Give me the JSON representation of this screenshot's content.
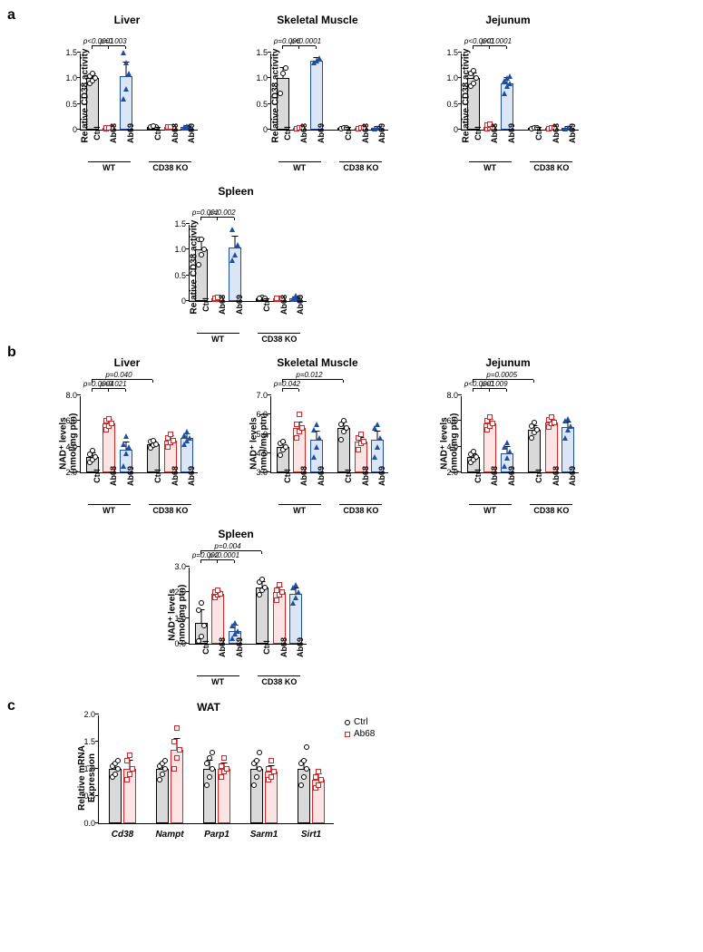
{
  "colors": {
    "ctrl_fill": "#d9d9d9",
    "ctrl_border": "#000000",
    "ab68_fill": "#fde4e4",
    "ab68_border": "#d62728",
    "ab69_fill": "#dae6f5",
    "ab69_border": "#1f4ea1"
  },
  "panel_a": {
    "label": "a",
    "ylabel": "Relative CD38 activity",
    "categories": [
      "Ctrl",
      "Ab68",
      "Ab69",
      "Ctrl",
      "Ab68",
      "Ab69"
    ],
    "groups": [
      "WT",
      "CD38 KO"
    ],
    "charts": [
      {
        "title": "Liver",
        "ylim": [
          0,
          1.5
        ],
        "ytick_step": 0.5,
        "values": [
          1.0,
          0.03,
          1.05,
          0.05,
          0.05,
          0.05
        ],
        "errors": [
          0.08,
          0.02,
          0.25,
          0.02,
          0.02,
          0.02
        ],
        "points": [
          [
            0.9,
            0.95,
            1.0,
            1.05,
            1.1
          ],
          [
            0.02,
            0.03,
            0.03,
            0.04,
            0.04
          ],
          [
            0.6,
            0.8,
            1.1,
            1.5,
            1.3
          ],
          [
            0.03,
            0.05,
            0.06,
            0.06,
            0.07
          ],
          [
            0.03,
            0.04,
            0.05,
            0.06,
            0.06
          ],
          [
            0.03,
            0.04,
            0.05,
            0.06,
            0.07
          ]
        ],
        "pvals": [
          {
            "t": "p<0.0001",
            "from": 0,
            "to": 1
          },
          {
            "t": "p=0.003",
            "from": 1,
            "to": 2
          }
        ]
      },
      {
        "title": "Skeletal Muscle",
        "ylim": [
          0,
          1.5
        ],
        "ytick_step": 0.5,
        "values": [
          1.0,
          0.03,
          1.35,
          0.03,
          0.03,
          0.03
        ],
        "errors": [
          0.2,
          0.02,
          0.05,
          0.02,
          0.02,
          0.02
        ],
        "points": [
          [
            0.7,
            1.1,
            1.2
          ],
          [
            0.02,
            0.03,
            0.04
          ],
          [
            1.3,
            1.35,
            1.4
          ],
          [
            0.02,
            0.03,
            0.04
          ],
          [
            0.02,
            0.03,
            0.04
          ],
          [
            0.02,
            0.03,
            0.04
          ]
        ],
        "pvals": [
          {
            "t": "p=0.006",
            "from": 0,
            "to": 1
          },
          {
            "t": "p<0.0001",
            "from": 1,
            "to": 2
          }
        ]
      },
      {
        "title": "Jejunum",
        "ylim": [
          0,
          1.5
        ],
        "ytick_step": 0.5,
        "values": [
          1.0,
          0.05,
          0.9,
          0.03,
          0.03,
          0.03
        ],
        "errors": [
          0.1,
          0.03,
          0.1,
          0.02,
          0.02,
          0.02
        ],
        "points": [
          [
            0.85,
            0.9,
            1.0,
            1.1,
            1.15
          ],
          [
            0.02,
            0.03,
            0.04,
            0.08,
            0.1
          ],
          [
            0.7,
            0.85,
            0.9,
            0.95,
            1.0,
            1.05
          ],
          [
            0.02,
            0.03,
            0.04
          ],
          [
            0.02,
            0.03,
            0.04
          ],
          [
            0.02,
            0.03,
            0.04
          ]
        ],
        "pvals": [
          {
            "t": "p<0.0001",
            "from": 0,
            "to": 1
          },
          {
            "t": "p<0.0001",
            "from": 1,
            "to": 2
          }
        ]
      },
      {
        "title": "Spleen",
        "ylim": [
          0,
          1.5
        ],
        "ytick_step": 0.5,
        "values": [
          1.0,
          0.05,
          1.05,
          0.05,
          0.05,
          0.05
        ],
        "errors": [
          0.2,
          0.03,
          0.2,
          0.02,
          0.02,
          0.02
        ],
        "points": [
          [
            0.7,
            0.9,
            1.0,
            1.2,
            1.2
          ],
          [
            0.03,
            0.04,
            0.05,
            0.06,
            0.07
          ],
          [
            0.8,
            0.9,
            1.1,
            1.4
          ],
          [
            0.03,
            0.07,
            0.05,
            0.06
          ],
          [
            0.03,
            0.04,
            0.05,
            0.06
          ],
          [
            0.03,
            0.04,
            0.05,
            0.06,
            0.1
          ]
        ],
        "pvals": [
          {
            "t": "p=0.001",
            "from": 0,
            "to": 1
          },
          {
            "t": "p=0.002",
            "from": 1,
            "to": 2
          }
        ]
      }
    ]
  },
  "panel_b": {
    "label": "b",
    "ylabel": "NAD⁺ levels\n(nmol/mg ptn)",
    "categories": [
      "Ctrl",
      "Ab68",
      "Ab69",
      "Ctrl",
      "Ab68",
      "Ab69"
    ],
    "groups": [
      "WT",
      "CD38 KO"
    ],
    "charts": [
      {
        "title": "Liver",
        "ylim": [
          2.0,
          8.0
        ],
        "ytick_step": 2.0,
        "values": [
          3.2,
          5.8,
          3.8,
          4.2,
          4.5,
          4.7
        ],
        "errors": [
          0.3,
          0.3,
          0.5,
          0.2,
          0.3,
          0.3
        ],
        "points": [
          [
            2.8,
            3.0,
            3.2,
            3.4,
            3.7
          ],
          [
            5.3,
            5.6,
            5.8,
            6.0,
            6.2
          ],
          [
            2.5,
            3.5,
            4.0,
            4.2,
            4.8
          ],
          [
            3.9,
            4.1,
            4.2,
            4.4,
            4.5
          ],
          [
            4.0,
            4.3,
            4.5,
            4.7,
            5.0
          ],
          [
            4.2,
            4.5,
            4.7,
            4.9,
            5.2
          ]
        ],
        "pvals": [
          {
            "t": "p=0.0004",
            "from": 0,
            "to": 1
          },
          {
            "t": "p=0.021",
            "from": 1,
            "to": 2
          },
          {
            "t": "p=0.040",
            "from": 0,
            "to": 3,
            "top": true
          }
        ]
      },
      {
        "title": "Skeletal Muscle",
        "ylim": [
          3.0,
          7.0
        ],
        "ytick_step": 1.0,
        "values": [
          4.3,
          5.3,
          4.7,
          5.3,
          4.6,
          4.7
        ],
        "errors": [
          0.2,
          0.3,
          0.4,
          0.3,
          0.2,
          0.4
        ],
        "points": [
          [
            3.9,
            4.2,
            4.3,
            4.5,
            4.6
          ],
          [
            4.8,
            5.1,
            5.3,
            5.5,
            6.0
          ],
          [
            3.8,
            4.3,
            4.8,
            5.2,
            5.5
          ],
          [
            4.7,
            5.1,
            5.3,
            5.5,
            5.7
          ],
          [
            4.2,
            4.5,
            4.6,
            4.8,
            5.0
          ],
          [
            3.8,
            4.3,
            4.8,
            5.3,
            5.5
          ]
        ],
        "pvals": [
          {
            "t": "p=0.042",
            "from": 0,
            "to": 1
          },
          {
            "t": "p=0.012",
            "from": 0,
            "to": 3,
            "top": true
          }
        ]
      },
      {
        "title": "Jejunum",
        "ylim": [
          2.0,
          8.0
        ],
        "ytick_step": 2.0,
        "values": [
          3.2,
          5.8,
          3.5,
          5.3,
          5.9,
          5.5
        ],
        "errors": [
          0.2,
          0.3,
          0.5,
          0.3,
          0.2,
          0.4
        ],
        "points": [
          [
            2.8,
            3.0,
            3.2,
            3.4,
            3.6
          ],
          [
            5.3,
            5.6,
            5.8,
            6.0,
            6.3
          ],
          [
            2.5,
            3.1,
            3.6,
            4.0,
            4.3
          ],
          [
            4.7,
            5.1,
            5.3,
            5.6,
            5.9
          ],
          [
            5.5,
            5.8,
            5.9,
            6.1,
            6.3
          ],
          [
            4.7,
            5.3,
            5.6,
            6.0,
            6.2
          ]
        ],
        "pvals": [
          {
            "t": "p<0.0001",
            "from": 0,
            "to": 1
          },
          {
            "t": "p=0.009",
            "from": 1,
            "to": 2
          },
          {
            "t": "p=0.0005",
            "from": 0,
            "to": 3,
            "top": true
          }
        ]
      },
      {
        "title": "Spleen",
        "ylim": [
          0,
          3.0
        ],
        "ytick_step": 1.0,
        "values": [
          0.8,
          1.95,
          0.5,
          2.2,
          2.0,
          1.95
        ],
        "errors": [
          0.5,
          0.1,
          0.2,
          0.2,
          0.2,
          0.2
        ],
        "points": [
          [
            0.1,
            0.3,
            0.7,
            1.3,
            1.6
          ],
          [
            1.8,
            1.9,
            1.95,
            2.0,
            2.1
          ],
          [
            0.2,
            0.4,
            0.5,
            0.7,
            0.8
          ],
          [
            1.9,
            2.1,
            2.2,
            2.4,
            2.5
          ],
          [
            1.7,
            1.9,
            2.0,
            2.1,
            2.3
          ],
          [
            1.6,
            1.8,
            2.0,
            2.2,
            2.3
          ]
        ],
        "pvals": [
          {
            "t": "p=0.002",
            "from": 0,
            "to": 1
          },
          {
            "t": "p<0.0001",
            "from": 1,
            "to": 2
          },
          {
            "t": "p=0.004",
            "from": 0,
            "to": 3,
            "top": true
          }
        ]
      }
    ]
  },
  "panel_c": {
    "label": "c",
    "title": "WAT",
    "ylabel": "Relative mRNA\nExpression",
    "ylim": [
      0,
      2.0
    ],
    "ytick_step": 0.5,
    "genes": [
      "Cd38",
      "Nampt",
      "Parp1",
      "Sarm1",
      "Sirt1"
    ],
    "legend": [
      "Ctrl",
      "Ab68"
    ],
    "ctrl_values": [
      1.0,
      1.0,
      1.0,
      1.0,
      1.0
    ],
    "ab68_values": [
      1.0,
      1.35,
      1.0,
      0.95,
      0.8
    ],
    "ctrl_err": [
      0.1,
      0.1,
      0.15,
      0.15,
      0.15
    ],
    "ab68_err": [
      0.15,
      0.2,
      0.1,
      0.1,
      0.1
    ],
    "ctrl_pts": [
      [
        0.85,
        0.9,
        1.0,
        1.05,
        1.1,
        1.15
      ],
      [
        0.8,
        0.9,
        1.0,
        1.05,
        1.1,
        1.15
      ],
      [
        0.7,
        0.85,
        1.0,
        1.1,
        1.2,
        1.3
      ],
      [
        0.7,
        0.85,
        1.0,
        1.1,
        1.15,
        1.3
      ],
      [
        0.7,
        0.85,
        1.0,
        1.1,
        1.15,
        1.4
      ]
    ],
    "ab68_pts": [
      [
        0.8,
        0.9,
        1.0,
        1.15,
        1.25
      ],
      [
        1.0,
        1.2,
        1.35,
        1.5,
        1.75
      ],
      [
        0.85,
        0.95,
        1.0,
        1.05,
        1.2
      ],
      [
        0.8,
        0.85,
        0.95,
        1.0,
        1.15
      ],
      [
        0.65,
        0.7,
        0.8,
        0.85,
        0.95
      ]
    ]
  }
}
